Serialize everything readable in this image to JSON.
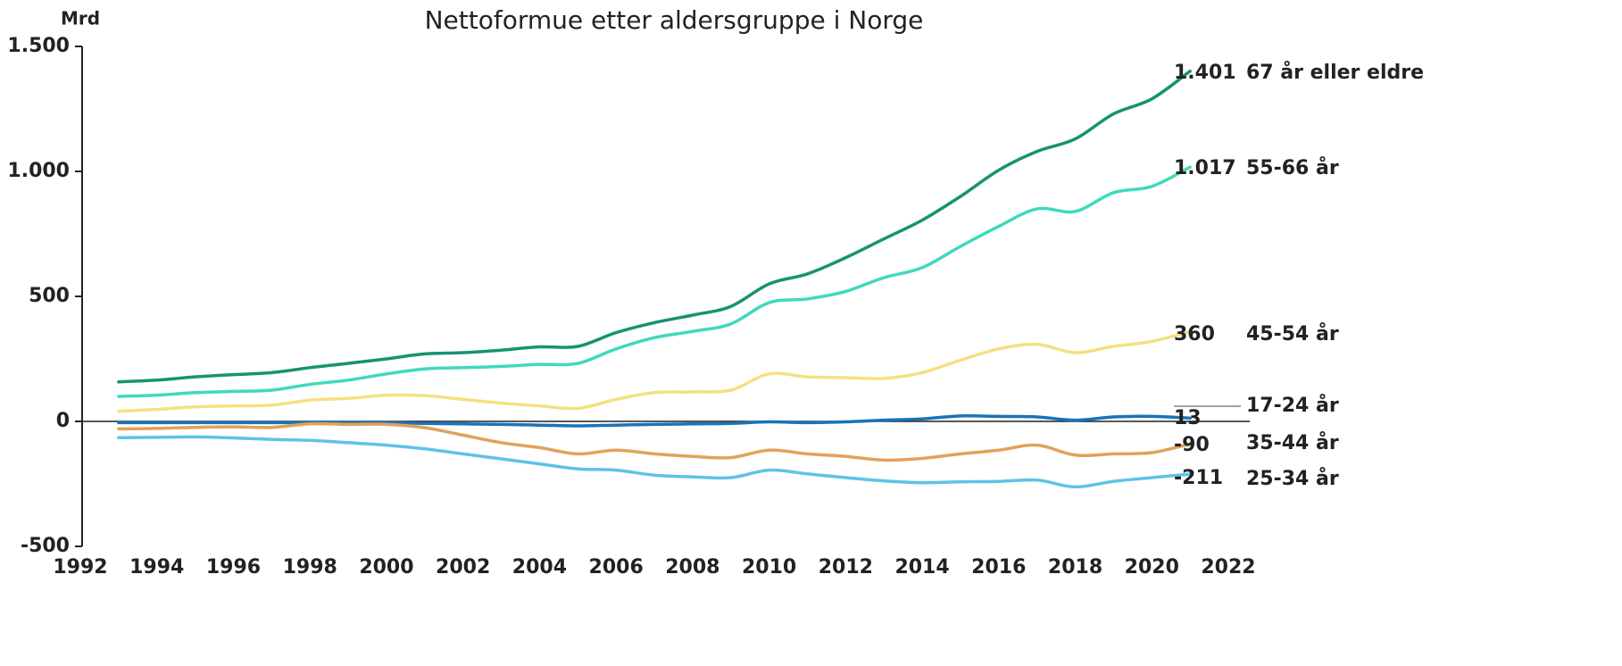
{
  "chart_data": {
    "type": "line",
    "title": "Nettoformue etter aldersgruppe i Norge",
    "y_label": "Mrd",
    "x": [
      1993,
      1994,
      1995,
      1996,
      1997,
      1998,
      1999,
      2000,
      2001,
      2002,
      2003,
      2004,
      2005,
      2006,
      2007,
      2008,
      2009,
      2010,
      2011,
      2012,
      2013,
      2014,
      2015,
      2016,
      2017,
      2018,
      2019,
      2020,
      2021
    ],
    "xlim": [
      1992,
      2022
    ],
    "xticks": [
      1992,
      1994,
      1996,
      1998,
      2000,
      2002,
      2004,
      2006,
      2008,
      2010,
      2012,
      2014,
      2016,
      2018,
      2020,
      2022
    ],
    "ylim": [
      -500,
      1500
    ],
    "yticks": [
      {
        "value": -500,
        "label": "-500"
      },
      0,
      500,
      {
        "value": 1000,
        "label": "1.000"
      },
      {
        "value": 1500,
        "label": "1.500"
      }
    ],
    "series": [
      {
        "name": "67 år eller eldre",
        "color": "#17936f",
        "label": "1.401",
        "values": [
          158,
          165,
          178,
          187,
          195,
          215,
          232,
          250,
          270,
          275,
          285,
          298,
          300,
          355,
          395,
          425,
          460,
          550,
          590,
          655,
          730,
          805,
          900,
          1005,
          1080,
          1130,
          1230,
          1290,
          1401
        ]
      },
      {
        "name": "55-66 år",
        "color": "#3fd9bd",
        "label": "1.017",
        "values": [
          100,
          105,
          115,
          120,
          125,
          148,
          165,
          190,
          210,
          215,
          220,
          228,
          232,
          290,
          335,
          360,
          390,
          475,
          490,
          520,
          575,
          615,
          700,
          780,
          850,
          840,
          915,
          940,
          1017
        ]
      },
      {
        "name": "45-54 år",
        "color": "#f5e07f",
        "label": "360",
        "values": [
          40,
          48,
          58,
          62,
          65,
          85,
          92,
          105,
          103,
          88,
          73,
          62,
          52,
          88,
          115,
          118,
          125,
          190,
          178,
          175,
          172,
          195,
          245,
          290,
          308,
          275,
          300,
          320,
          360
        ]
      },
      {
        "name": "17-24 år",
        "color": "#1a73b8",
        "label": "13",
        "values": [
          -5,
          -5,
          -5,
          -5,
          -5,
          -5,
          -5,
          -5,
          -8,
          -10,
          -12,
          -15,
          -18,
          -15,
          -12,
          -10,
          -8,
          -2,
          -5,
          -2,
          5,
          10,
          22,
          20,
          18,
          5,
          18,
          20,
          13
        ]
      },
      {
        "name": "35-44 år",
        "color": "#e2a15a",
        "label": "-90",
        "values": [
          -30,
          -28,
          -24,
          -22,
          -24,
          -10,
          -12,
          -12,
          -25,
          -55,
          -85,
          -105,
          -130,
          -115,
          -130,
          -140,
          -145,
          -115,
          -130,
          -140,
          -155,
          -148,
          -130,
          -115,
          -95,
          -135,
          -130,
          -125,
          -90
        ]
      },
      {
        "name": "25-34 år",
        "color": "#5ec3e6",
        "label": "-211",
        "values": [
          -65,
          -64,
          -62,
          -66,
          -72,
          -76,
          -85,
          -95,
          -110,
          -130,
          -150,
          -170,
          -190,
          -195,
          -215,
          -222,
          -225,
          -195,
          -210,
          -225,
          -238,
          -245,
          -242,
          -240,
          -235,
          -262,
          -240,
          -225,
          -211
        ]
      }
    ]
  }
}
